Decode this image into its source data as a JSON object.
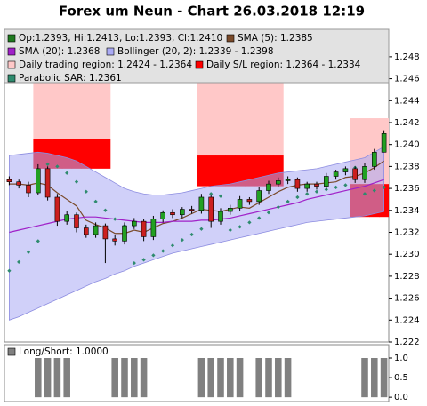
{
  "chart_data": [
    {
      "type": "candlestick",
      "title": "Forex um Neun - Chart 26.03.2018 12:19",
      "ylim": [
        1.222,
        1.2505
      ],
      "yticks": [
        1.222,
        1.224,
        1.226,
        1.228,
        {
          "value": 1.23,
          "label": "1.230"
        },
        1.232,
        1.234,
        1.236,
        1.238,
        {
          "value": 1.24,
          "label": "1.240"
        },
        1.242,
        1.244,
        1.246,
        1.248
      ],
      "series": [
        {
          "kind": "candles",
          "name": "Op:1.2393, Hi:1.2413, Lo:1.2393, Cl:1.2410",
          "color": "#1f7a1f",
          "up_color": "#22a022",
          "down_color": "#cc1f1f",
          "open": [
            1.2368,
            1.2366,
            1.2363,
            1.2356,
            1.2378,
            1.2352,
            1.233,
            1.2336,
            1.2324,
            1.2318,
            1.2326,
            1.2314,
            1.2312,
            1.2326,
            1.233,
            1.2316,
            1.2332,
            1.2338,
            1.2336,
            1.2341,
            1.234,
            1.2352,
            1.233,
            1.2339,
            1.2342,
            1.235,
            1.2348,
            1.2358,
            1.2364,
            1.2367,
            1.2368,
            1.236,
            1.2364,
            1.2362,
            1.2371,
            1.2375,
            1.2378,
            1.2368,
            1.238,
            1.2393
          ],
          "high": [
            1.2371,
            1.2368,
            1.2366,
            1.2382,
            1.238,
            1.2355,
            1.2339,
            1.2338,
            1.2327,
            1.2329,
            1.2328,
            1.2318,
            1.2329,
            1.2333,
            1.2332,
            1.2335,
            1.234,
            1.2341,
            1.2343,
            1.2344,
            1.2355,
            1.2354,
            1.2342,
            1.2345,
            1.2353,
            1.2352,
            1.2361,
            1.2367,
            1.237,
            1.2371,
            1.237,
            1.2366,
            1.2366,
            1.2374,
            1.2377,
            1.238,
            1.238,
            1.2383,
            1.2396,
            1.2413
          ],
          "low": [
            1.2363,
            1.236,
            1.2352,
            1.2354,
            1.2349,
            1.2326,
            1.2327,
            1.232,
            1.2315,
            1.2315,
            1.2292,
            1.2308,
            1.2309,
            1.2323,
            1.2312,
            1.2313,
            1.2329,
            1.2333,
            1.2333,
            1.2337,
            1.2337,
            1.2324,
            1.2327,
            1.2336,
            1.2339,
            1.2345,
            1.2345,
            1.2355,
            1.2361,
            1.2364,
            1.2357,
            1.2357,
            1.2359,
            1.2359,
            1.2368,
            1.2372,
            1.2365,
            1.2365,
            1.2377,
            1.2393
          ],
          "close": [
            1.2366,
            1.2363,
            1.2356,
            1.2378,
            1.2352,
            1.233,
            1.2336,
            1.2324,
            1.2318,
            1.2326,
            1.2314,
            1.2312,
            1.2326,
            1.233,
            1.2316,
            1.2332,
            1.2338,
            1.2336,
            1.2341,
            1.234,
            1.2352,
            1.233,
            1.2339,
            1.2342,
            1.235,
            1.2348,
            1.2358,
            1.2364,
            1.2367,
            1.2368,
            1.236,
            1.2364,
            1.2362,
            1.2371,
            1.2375,
            1.2378,
            1.2368,
            1.238,
            1.2393,
            1.241
          ]
        },
        {
          "kind": "line",
          "name": "SMA (5): 1.2385",
          "color": "#7a4a2a",
          "values": [
            1.2364,
            1.2364,
            1.2363,
            1.2365,
            1.2363,
            1.2356,
            1.235,
            1.2344,
            1.2331,
            1.2327,
            1.2324,
            1.2319,
            1.2319,
            1.2322,
            1.232,
            1.2324,
            1.2328,
            1.233,
            1.2333,
            1.2337,
            1.2341,
            1.234,
            1.2339,
            1.2341,
            1.2343,
            1.2342,
            1.2347,
            1.2352,
            1.2357,
            1.2361,
            1.2363,
            1.2364,
            1.2364,
            1.2365,
            1.2366,
            1.237,
            1.2371,
            1.2374,
            1.2379,
            1.2385
          ]
        },
        {
          "kind": "line",
          "name": "SMA (20): 1.2368",
          "color": "#a020c8",
          "values": [
            1.232,
            1.2322,
            1.2324,
            1.2326,
            1.2328,
            1.233,
            1.2332,
            1.2333,
            1.2334,
            1.2334,
            1.2333,
            1.2332,
            1.2331,
            1.233,
            1.2329,
            1.2329,
            1.2329,
            1.233,
            1.233,
            1.233,
            1.2331,
            1.2331,
            1.2332,
            1.2333,
            1.2335,
            1.2337,
            1.2339,
            1.2341,
            1.2343,
            1.2345,
            1.2347,
            1.235,
            1.2352,
            1.2354,
            1.2356,
            1.2358,
            1.236,
            1.2362,
            1.2365,
            1.2368
          ]
        },
        {
          "kind": "band",
          "name": "Bollinger (20, 2): 1.2339 - 1.2398",
          "color": "#aaaaf4",
          "upper": [
            1.239,
            1.2391,
            1.2392,
            1.2393,
            1.2392,
            1.239,
            1.2388,
            1.2385,
            1.238,
            1.2375,
            1.237,
            1.2365,
            1.236,
            1.2357,
            1.2355,
            1.2354,
            1.2354,
            1.2355,
            1.2356,
            1.2358,
            1.236,
            1.2362,
            1.2363,
            1.2364,
            1.2366,
            1.2368,
            1.237,
            1.2372,
            1.2374,
            1.2375,
            1.2376,
            1.2377,
            1.2378,
            1.238,
            1.2382,
            1.2384,
            1.2386,
            1.2388,
            1.2393,
            1.2398
          ],
          "lower": [
            1.224,
            1.2243,
            1.2247,
            1.2251,
            1.2255,
            1.2259,
            1.2263,
            1.2267,
            1.2271,
            1.2275,
            1.2278,
            1.2282,
            1.2285,
            1.2289,
            1.2292,
            1.2295,
            1.2298,
            1.2301,
            1.2303,
            1.2305,
            1.2307,
            1.2309,
            1.2311,
            1.2313,
            1.2315,
            1.2317,
            1.2319,
            1.2321,
            1.2323,
            1.2325,
            1.2327,
            1.2329,
            1.233,
            1.2331,
            1.2332,
            1.2333,
            1.2334,
            1.2335,
            1.2337,
            1.2339
          ]
        },
        {
          "kind": "region",
          "name": "Daily trading region: 1.2424 - 1.2364",
          "color": "#ffc8c8",
          "upper": [
            null,
            null,
            null,
            1.2505,
            1.2505,
            1.2505,
            1.2505,
            1.2505,
            1.2505,
            1.2505,
            1.2505,
            null,
            null,
            null,
            null,
            null,
            null,
            null,
            null,
            null,
            1.2505,
            1.2505,
            1.2505,
            1.2505,
            1.2505,
            1.2505,
            1.2505,
            1.2505,
            1.2505,
            null,
            null,
            null,
            null,
            null,
            null,
            null,
            1.2424,
            1.2424,
            1.2424,
            1.2424
          ],
          "lower": [
            null,
            null,
            null,
            1.2405,
            1.2405,
            1.2405,
            1.2405,
            1.2405,
            1.2405,
            1.2405,
            1.2405,
            null,
            null,
            null,
            null,
            null,
            null,
            null,
            null,
            null,
            1.239,
            1.239,
            1.239,
            1.239,
            1.239,
            1.239,
            1.239,
            1.239,
            1.239,
            null,
            null,
            null,
            null,
            null,
            null,
            null,
            1.2364,
            1.2364,
            1.2364,
            1.2364
          ]
        },
        {
          "kind": "region",
          "name": "Daily S/L region: 1.2364 - 1.2334",
          "color": "#ff0000",
          "upper": [
            null,
            null,
            null,
            1.2405,
            1.2405,
            1.2405,
            1.2405,
            1.2405,
            1.2405,
            1.2405,
            1.2405,
            null,
            null,
            null,
            null,
            null,
            null,
            null,
            null,
            null,
            1.239,
            1.239,
            1.239,
            1.239,
            1.239,
            1.239,
            1.239,
            1.239,
            1.239,
            null,
            null,
            null,
            null,
            null,
            null,
            null,
            1.2364,
            1.2364,
            1.2364,
            1.2364
          ],
          "lower": [
            null,
            null,
            null,
            1.2378,
            1.2378,
            1.2378,
            1.2378,
            1.2378,
            1.2378,
            1.2378,
            1.2378,
            null,
            null,
            null,
            null,
            null,
            null,
            null,
            null,
            null,
            1.2362,
            1.2362,
            1.2362,
            1.2362,
            1.2362,
            1.2362,
            1.2362,
            1.2362,
            1.2362,
            null,
            null,
            null,
            null,
            null,
            null,
            null,
            1.2334,
            1.2334,
            1.2334,
            1.2334
          ]
        },
        {
          "kind": "dots",
          "name": "Parabolic SAR: 1.2361",
          "color": "#2e8b6e",
          "values": [
            1.2285,
            1.2293,
            1.2302,
            1.2312,
            1.2382,
            1.238,
            1.2374,
            1.2366,
            1.2357,
            1.2348,
            1.234,
            1.2332,
            1.2326,
            1.2292,
            1.2295,
            1.2299,
            1.2303,
            1.2308,
            1.2313,
            1.2318,
            1.2323,
            1.2355,
            1.2353,
            1.2322,
            1.2325,
            1.2329,
            1.2333,
            1.2338,
            1.2343,
            1.2348,
            1.2352,
            1.2355,
            1.2357,
            1.2359,
            1.2361,
            1.2363,
            1.2379,
            1.2355,
            1.2358,
            1.2361
          ]
        }
      ]
    },
    {
      "type": "bar",
      "name": "Long/Short: 1.0000",
      "color": "#808080",
      "ylim": [
        -0.11,
        1.34
      ],
      "yticks": [
        {
          "value": 0,
          "label": "0.0"
        },
        0.5,
        {
          "value": 1,
          "label": "1.0"
        }
      ],
      "values": [
        0,
        0,
        0,
        1,
        1,
        1,
        1,
        0,
        0,
        0,
        0,
        1,
        1,
        1,
        1,
        0,
        0,
        0,
        0,
        0,
        1,
        1,
        1,
        1,
        1,
        0,
        1,
        1,
        1,
        1,
        0,
        0,
        0,
        0,
        0,
        0,
        0,
        1,
        1,
        1
      ]
    }
  ]
}
